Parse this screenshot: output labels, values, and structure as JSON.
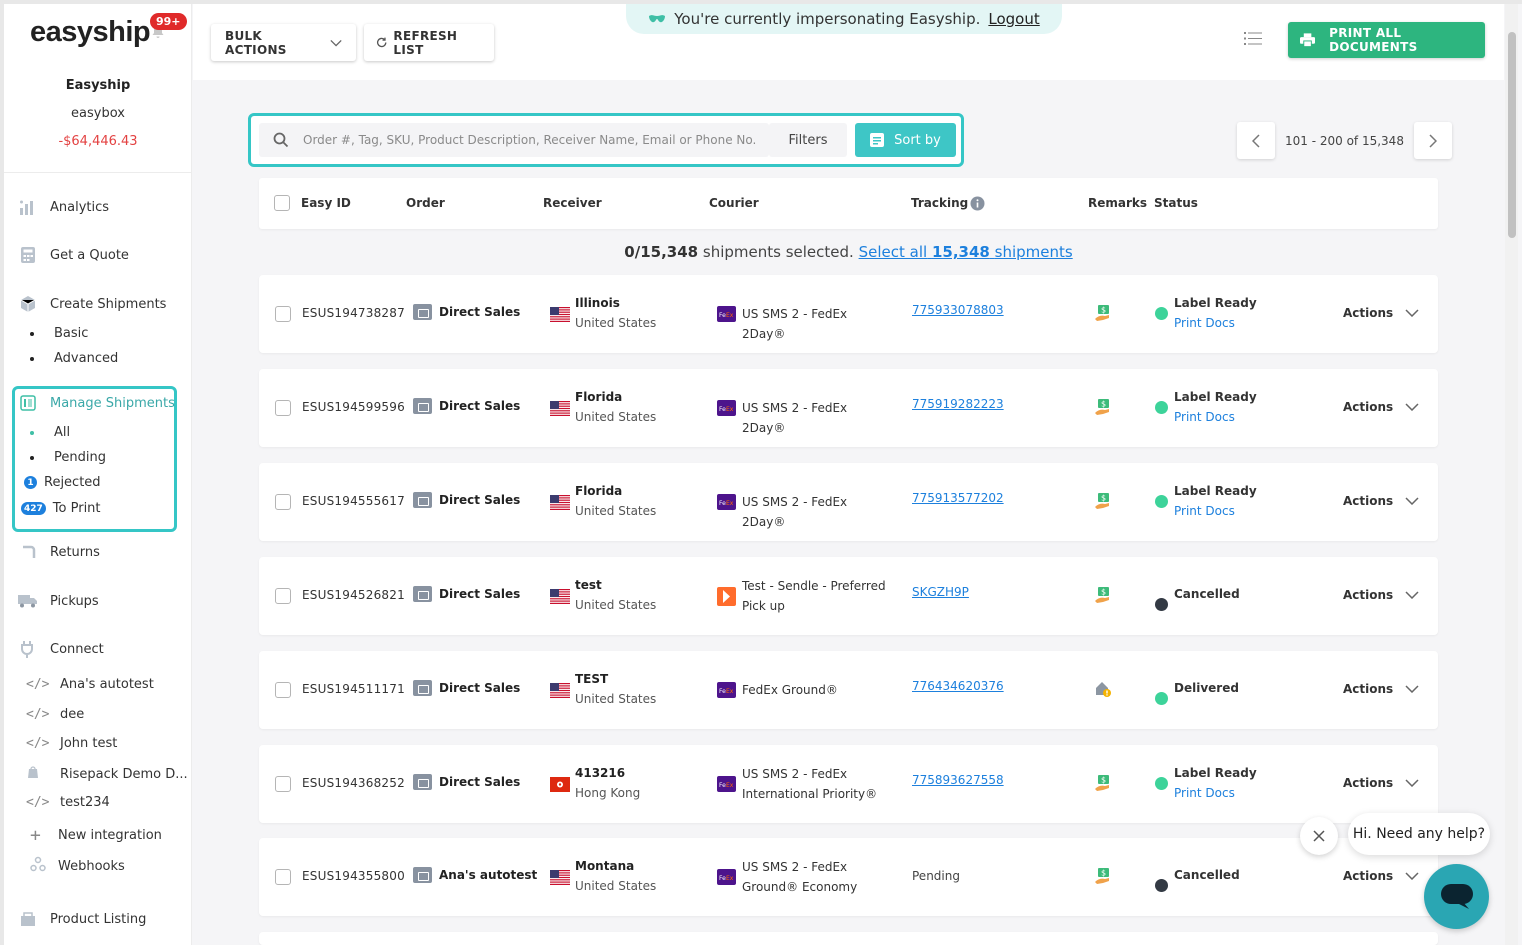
{
  "brand": {
    "logo": "easyship",
    "notif_count": "99+"
  },
  "account": {
    "name": "Easyship",
    "sub": "easybox",
    "balance": "-$64,446.43"
  },
  "nav": {
    "analytics": "Analytics",
    "quote": "Get a Quote",
    "create": "Create Shipments",
    "create_sub": [
      "Basic",
      "Advanced"
    ],
    "manage": "Manage Shipments",
    "manage_sub": {
      "all": "All",
      "pending": "Pending",
      "rejected": "Rejected",
      "rejected_count": "1",
      "to_print": "To Print",
      "to_print_count": "427"
    },
    "returns": "Returns",
    "pickups": "Pickups",
    "connect": "Connect",
    "integrations": [
      "Ana's autotest",
      "dee",
      "John test",
      "Risepack Demo D...",
      "test234"
    ],
    "new_integration": "New integration",
    "webhooks": "Webhooks",
    "product_listing": "Product Listing"
  },
  "toolbar": {
    "bulk": "BULK ACTIONS",
    "refresh": "REFRESH LIST",
    "print_all": "PRINT ALL DOCUMENTS"
  },
  "impersonation": {
    "text": "You're currently impersonating Easyship.",
    "logout": "Logout"
  },
  "search": {
    "placeholder": "Order #, Tag, SKU, Product Description, Receiver Name, Email or Phone No.",
    "filters": "Filters",
    "sort": "Sort by"
  },
  "pager": {
    "range": "101 - 200 of 15,348"
  },
  "table": {
    "headers": {
      "easy_id": "Easy ID",
      "order": "Order",
      "receiver": "Receiver",
      "courier": "Courier",
      "tracking": "Tracking",
      "remarks": "Remarks",
      "status": "Status"
    },
    "selection": {
      "count": "0/15,348",
      "text": "shipments selected.",
      "link_pre": "Select all",
      "link_num": "15,348",
      "link_post": "shipments"
    },
    "rows": [
      {
        "id": "ESUS194738287",
        "order": "Direct Sales",
        "recv_name": "Illinois",
        "recv_country": "United States",
        "courier": "US SMS 2 - FedEx 2Day®",
        "tracking": "775933078803",
        "status": "Label Ready",
        "print": "Print Docs",
        "actions": "Actions"
      },
      {
        "id": "ESUS194599596",
        "order": "Direct Sales",
        "recv_name": "Florida",
        "recv_country": "United States",
        "courier": "US SMS 2 - FedEx 2Day®",
        "tracking": "775919282223",
        "status": "Label Ready",
        "print": "Print Docs",
        "actions": "Actions"
      },
      {
        "id": "ESUS194555617",
        "order": "Direct Sales",
        "recv_name": "Florida",
        "recv_country": "United States",
        "courier": "US SMS 2 - FedEx 2Day®",
        "tracking": "775913577202",
        "status": "Label Ready",
        "print": "Print Docs",
        "actions": "Actions"
      },
      {
        "id": "ESUS194526821",
        "order": "Direct Sales",
        "recv_name": "test",
        "recv_country": "United States",
        "courier": "Test - Sendle - Preferred Pick up",
        "tracking": "SKGZH9P",
        "status": "Cancelled",
        "print": "",
        "actions": "Actions"
      },
      {
        "id": "ESUS194511171",
        "order": "Direct Sales",
        "recv_name": "TEST",
        "recv_country": "United States",
        "courier": "FedEx Ground®",
        "tracking": "776434620376",
        "status": "Delivered",
        "print": "",
        "actions": "Actions"
      },
      {
        "id": "ESUS194368252",
        "order": "Direct Sales",
        "recv_name": "413216",
        "recv_country": "Hong Kong",
        "courier": "US SMS 2 - FedEx International Priority®",
        "tracking": "775893627558",
        "status": "Label Ready",
        "print": "Print Docs",
        "actions": "Actions"
      },
      {
        "id": "ESUS194355800",
        "order": "Ana's autotest",
        "recv_name": "Montana",
        "recv_country": "United States",
        "courier": "US SMS 2 - FedEx Ground® Economy",
        "tracking": "Pending",
        "status": "Cancelled",
        "print": "",
        "actions": "Actions"
      }
    ]
  },
  "chat": {
    "prompt": "Hi. Need any help?"
  },
  "colors": {
    "teal": "#35c6c6",
    "green": "#2db57f",
    "link": "#1d80dd",
    "label_ready": "#3dd39a",
    "cancelled": "#333a44"
  }
}
